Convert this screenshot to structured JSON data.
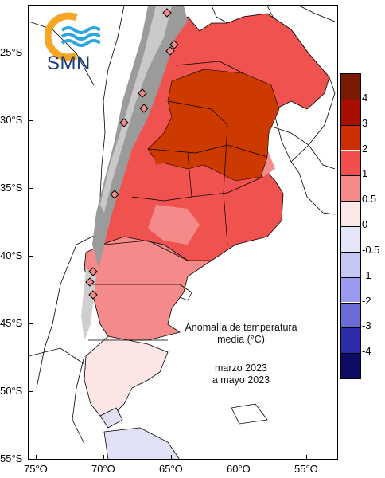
{
  "logo": {
    "text": "SMN",
    "accent_color": "#f5a623",
    "wave_color": "#2aa7e0"
  },
  "annotation": {
    "title_line1": "Anomalía de temperatura",
    "title_line2": "media (°C)",
    "period_line1": "marzo 2023",
    "period_line2": "a mayo 2023"
  },
  "axes": {
    "latitude_labels": [
      "25°S",
      "30°S",
      "35°S",
      "40°S",
      "45°S",
      "50°S",
      "55°S"
    ],
    "longitude_labels": [
      "75°O",
      "70°O",
      "65°O",
      "60°O",
      "55°O"
    ]
  },
  "legend": {
    "labels": [
      "4",
      "3",
      "2",
      "1",
      "0.5",
      "0",
      "-0.5",
      "-1",
      "-2",
      "-3",
      "-4"
    ],
    "colors": [
      "#7a1a00",
      "#a80f00",
      "#cc2f00",
      "#f24e4e",
      "#f58888",
      "#fce8e8",
      "#e6e6fb",
      "#c6c6f5",
      "#9a9af0",
      "#6c6cd8",
      "#2c2ca8",
      "#0d0d66"
    ]
  },
  "map_colors": {
    "anomaly_2_3": "#cc3a00",
    "anomaly_1_2": "#f0524f",
    "anomaly_05_1": "#f48a8a",
    "anomaly_0_05": "#fbe5e5",
    "anomaly_neg": "#e1e1f5",
    "andes_relief": "#9b9b9b",
    "stations": "#f48a8a"
  }
}
